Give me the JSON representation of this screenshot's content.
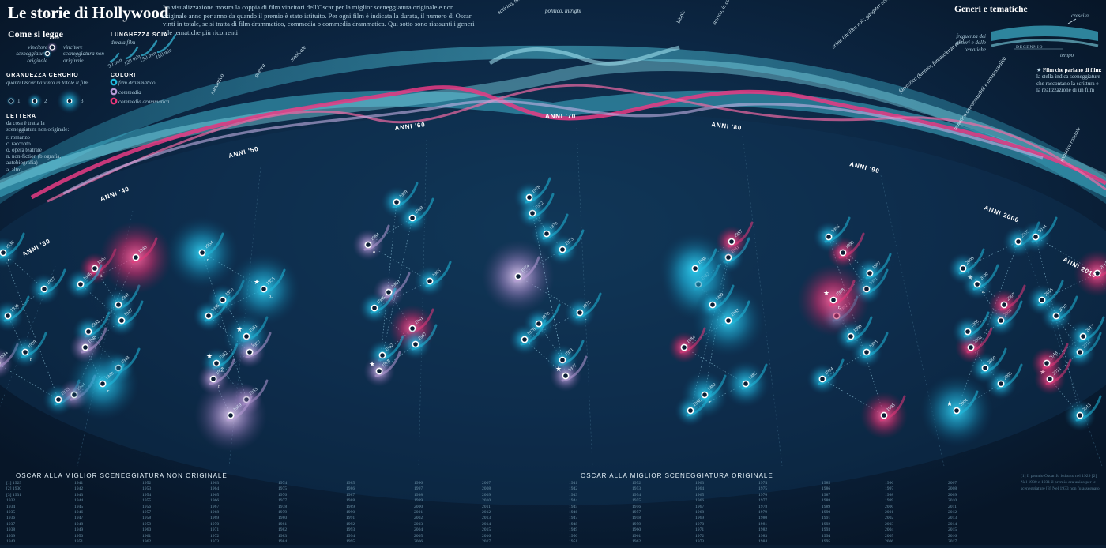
{
  "title": "Le storie di Hollywood",
  "intro": "La visualizzazione mostra la coppia di film vincitori dell'Oscar per la miglior sceneggiatura originale e non originale anno per anno da quando il premio è stato istituito. Per ogni film è indicata la durata, il numero di Oscar vinti in totale, se si tratta di film drammatico, commedia o commedia drammatica. Qui sotto sono riassunti i generi e le tematiche più ricorrenti",
  "legend": {
    "heading": "Come si legge",
    "winners": {
      "original": "vincitore sceneggiatura originale",
      "non_original": "vincitore sceneggiatura non originale"
    },
    "trail": {
      "title": "LUNGHEZZA SCIA",
      "subtitle": "durata film",
      "labels": [
        "90 min",
        "120 min",
        "150 min",
        "180 min"
      ]
    },
    "circle": {
      "title": "GRANDEZZA CERCHIO",
      "subtitle": "quanti Oscar ha vinto in totale il film",
      "labels": [
        "1",
        "2",
        "3"
      ]
    },
    "colors": {
      "title": "COLORI",
      "items": [
        {
          "label": "film drammatico",
          "color": "#1fb9dd"
        },
        {
          "label": "commedia",
          "color": "#b69ad6"
        },
        {
          "label": "commedia drammatica",
          "color": "#e8367a"
        }
      ]
    },
    "letter": {
      "title": "LETTERA",
      "subtitle": "da cosa è tratta la sceneggiatura non originale:",
      "items": [
        "r. romanzo",
        "c. racconto",
        "o. opera teatrale",
        "n. non-fiction (biografia, autobiografia)",
        "a. altro"
      ]
    }
  },
  "genres": {
    "heading": "Generi e tematiche",
    "axis": {
      "band_label": "frequenza dei generi e delle tematiche",
      "decade": "DECENNIO",
      "growth": "crescita",
      "time": "tempo"
    },
    "labels": [
      "romantico",
      "guerra",
      "musicale",
      "satirico, black comedy",
      "politico, intrighi",
      "biopic",
      "storico, in costume",
      "crime (thriller, noir, gangster ecc.)",
      "fantastico (fantasy, fantascienza ecc.)",
      "tematica omosessualità e transessualità",
      "tematica razziale"
    ]
  },
  "star_note": {
    "title": "Film che parlano di film:",
    "text": "la stella indica sceneggiature che raccontano la scrittura e la realizzazione di un film"
  },
  "decades": [
    "ANNI '30",
    "ANNI '40",
    "ANNI '50",
    "ANNI '60",
    "ANNI '70",
    "ANNI '80",
    "ANNI '90",
    "ANNI 2000",
    "ANNI 2010"
  ],
  "films": [
    {
      "yr": "1934",
      "c": "c",
      "o": 1,
      "l": "",
      "s": 0
    },
    {
      "yr": "1935",
      "c": "d",
      "o": 1,
      "l": "",
      "s": 0
    },
    {
      "yr": "1936",
      "c": "d",
      "o": 1,
      "l": "r.",
      "s": 0
    },
    {
      "yr": "1937",
      "c": "d",
      "o": 1,
      "l": "",
      "s": 0
    },
    {
      "yr": "1938",
      "c": "d",
      "o": 1,
      "l": "",
      "s": 0
    },
    {
      "yr": "1939",
      "c": "d",
      "o": 1,
      "l": "r.",
      "s": 0
    },
    {
      "yr": "1940",
      "c": "m",
      "o": 1,
      "l": "o.",
      "s": 0
    },
    {
      "yr": "1941",
      "c": "d",
      "o": 1,
      "l": "",
      "s": 0
    },
    {
      "yr": "1942",
      "c": "d",
      "o": 1,
      "l": "",
      "s": 0
    },
    {
      "yr": "1943",
      "c": "d",
      "o": 1,
      "l": "",
      "s": 0
    },
    {
      "yr": "1944",
      "c": "c",
      "o": 1,
      "l": "",
      "s": 0
    },
    {
      "yr": "1945",
      "c": "m",
      "o": 3,
      "l": "",
      "s": 0
    },
    {
      "yr": "1946",
      "c": "d",
      "o": 1,
      "l": "",
      "s": 0
    },
    {
      "yr": "1947",
      "c": "d",
      "o": 1,
      "l": "",
      "s": 0
    },
    {
      "yr": "1948",
      "c": "c",
      "o": 1,
      "l": "",
      "s": 0
    },
    {
      "yr": "1949",
      "c": "d",
      "o": 3,
      "l": "r.",
      "s": 0
    },
    {
      "yr": "1950",
      "c": "d",
      "o": 1,
      "l": "",
      "s": 0
    },
    {
      "yr": "1951",
      "c": "d",
      "o": 2,
      "l": "r.",
      "s": 1
    },
    {
      "yr": "1952",
      "c": "d",
      "o": 1,
      "l": "c.",
      "s": 1
    },
    {
      "yr": "1953",
      "c": "c",
      "o": 1,
      "l": "",
      "s": 0
    },
    {
      "yr": "1954",
      "c": "d",
      "o": 3,
      "l": "r.",
      "s": 0
    },
    {
      "yr": "1955",
      "c": "d",
      "o": 3,
      "l": "o.",
      "s": 1
    },
    {
      "yr": "1956",
      "c": "d",
      "o": 1,
      "l": "",
      "s": 0
    },
    {
      "yr": "1957",
      "c": "c",
      "o": 1,
      "l": "",
      "s": 0
    },
    {
      "yr": "1958",
      "c": "c",
      "o": 1,
      "l": "r.",
      "s": 0
    },
    {
      "yr": "1959",
      "c": "c",
      "o": 3,
      "l": "",
      "s": 0
    },
    {
      "yr": "1960",
      "c": "c",
      "o": 1,
      "l": "",
      "s": 0
    },
    {
      "yr": "1961",
      "c": "m",
      "o": 2,
      "l": "",
      "s": 0
    },
    {
      "yr": "1962",
      "c": "d",
      "o": 1,
      "l": "",
      "s": 0
    },
    {
      "yr": "1963",
      "c": "d",
      "o": 1,
      "l": "",
      "s": 0
    },
    {
      "yr": "1964",
      "c": "c",
      "o": 1,
      "l": "o.",
      "s": 0
    },
    {
      "yr": "1965",
      "c": "d",
      "o": 1,
      "l": "",
      "s": 0
    },
    {
      "yr": "1966",
      "c": "d",
      "o": 1,
      "l": "",
      "s": 0
    },
    {
      "yr": "1967",
      "c": "d",
      "o": 1,
      "l": "",
      "s": 0
    },
    {
      "yr": "1968",
      "c": "c",
      "o": 1,
      "l": "",
      "s": 1
    },
    {
      "yr": "1969",
      "c": "d",
      "o": 1,
      "l": "",
      "s": 0
    },
    {
      "yr": "1970",
      "c": "d",
      "o": 1,
      "l": "",
      "s": 0
    },
    {
      "yr": "1971",
      "c": "d",
      "o": 1,
      "l": "",
      "s": 0
    },
    {
      "yr": "1972",
      "c": "d",
      "o": 1,
      "l": "",
      "s": 0
    },
    {
      "yr": "1973",
      "c": "d",
      "o": 1,
      "l": "",
      "s": 0
    },
    {
      "yr": "1974",
      "c": "c",
      "o": 3,
      "l": "",
      "s": 0
    },
    {
      "yr": "1975",
      "c": "d",
      "o": 1,
      "l": "r.",
      "s": 0
    },
    {
      "yr": "1976",
      "c": "d",
      "o": 1,
      "l": "",
      "s": 0
    },
    {
      "yr": "1977",
      "c": "c",
      "o": 1,
      "l": "",
      "s": 1
    },
    {
      "yr": "1978",
      "c": "d",
      "o": 1,
      "l": "",
      "s": 0
    },
    {
      "yr": "1979",
      "c": "d",
      "o": 1,
      "l": "",
      "s": 0
    },
    {
      "yr": "1980",
      "c": "d",
      "o": 2,
      "l": "r.",
      "s": 0
    },
    {
      "yr": "1981",
      "c": "d",
      "o": 1,
      "l": "",
      "s": 0
    },
    {
      "yr": "1982",
      "c": "d",
      "o": 3,
      "l": "",
      "s": 0
    },
    {
      "yr": "1983",
      "c": "d",
      "o": 3,
      "l": "",
      "s": 0
    },
    {
      "yr": "1984",
      "c": "m",
      "o": 1,
      "l": "",
      "s": 0
    },
    {
      "yr": "1985",
      "c": "d",
      "o": 2,
      "l": "",
      "s": 0
    },
    {
      "yr": "1986",
      "c": "d",
      "o": 1,
      "l": "",
      "s": 0
    },
    {
      "yr": "1987",
      "c": "m",
      "o": 1,
      "l": "",
      "s": 0
    },
    {
      "yr": "1988",
      "c": "d",
      "o": 3,
      "l": "",
      "s": 0
    },
    {
      "yr": "1989",
      "c": "d",
      "o": 1,
      "l": "",
      "s": 0
    },
    {
      "yr": "1990",
      "c": "m",
      "o": 1,
      "l": "o.",
      "s": 0
    },
    {
      "yr": "1991",
      "c": "d",
      "o": 1,
      "l": "",
      "s": 0
    },
    {
      "yr": "1992",
      "c": "d",
      "o": 1,
      "l": "",
      "s": 0
    },
    {
      "yr": "1993",
      "c": "d",
      "o": 1,
      "l": "",
      "s": 0
    },
    {
      "yr": "1994",
      "c": "d",
      "o": 1,
      "l": "",
      "s": 0
    },
    {
      "yr": "1995",
      "c": "m",
      "o": 2,
      "l": "",
      "s": 0
    },
    {
      "yr": "1996",
      "c": "d",
      "o": 1,
      "l": "",
      "s": 0
    },
    {
      "yr": "1997",
      "c": "d",
      "o": 1,
      "l": "",
      "s": 0
    },
    {
      "yr": "1998",
      "c": "m",
      "o": 3,
      "l": "r.",
      "s": 1
    },
    {
      "yr": "1999",
      "c": "d",
      "o": 1,
      "l": "",
      "s": 0
    },
    {
      "yr": "2000",
      "c": "d",
      "o": 1,
      "l": "a.",
      "s": 1
    },
    {
      "yr": "2001",
      "c": "d",
      "o": 1,
      "l": "",
      "s": 0
    },
    {
      "yr": "2002",
      "c": "m",
      "o": 1,
      "l": "",
      "s": 0
    },
    {
      "yr": "2003",
      "c": "d",
      "o": 1,
      "l": "",
      "s": 0
    },
    {
      "yr": "2004",
      "c": "d",
      "o": 3,
      "l": "",
      "s": 1
    },
    {
      "yr": "2005",
      "c": "d",
      "o": 1,
      "l": "",
      "s": 0
    },
    {
      "yr": "2006",
      "c": "d",
      "o": 1,
      "l": "",
      "s": 0
    },
    {
      "yr": "2007",
      "c": "m",
      "o": 1,
      "l": "",
      "s": 0
    },
    {
      "yr": "2008",
      "c": "d",
      "o": 1,
      "l": "",
      "s": 0
    },
    {
      "yr": "2009",
      "c": "d",
      "o": 1,
      "l": "",
      "s": 0
    },
    {
      "yr": "2010",
      "c": "d",
      "o": 1,
      "l": "",
      "s": 0
    },
    {
      "yr": "2011",
      "c": "d",
      "o": 1,
      "l": "",
      "s": 0
    },
    {
      "yr": "2012",
      "c": "m",
      "o": 1,
      "l": "",
      "s": 1
    },
    {
      "yr": "2013",
      "c": "d",
      "o": 1,
      "l": "",
      "s": 0
    },
    {
      "yr": "2014",
      "c": "d",
      "o": 1,
      "l": "",
      "s": 0
    },
    {
      "yr": "2015",
      "c": "m",
      "o": 2,
      "l": "",
      "s": 0
    },
    {
      "yr": "2016",
      "c": "d",
      "o": 1,
      "l": "",
      "s": 0
    },
    {
      "yr": "2017",
      "c": "d",
      "o": 1,
      "l": "",
      "s": 0
    },
    {
      "yr": "2018",
      "c": "m",
      "o": 1,
      "l": "",
      "s": 0
    }
  ],
  "list_non_original": {
    "heading": "OSCAR ALLA MIGLIOR SCENEGGIATURA NON ORIGINALE",
    "columns": [
      [
        "[1] 1929",
        "[2] 1930",
        "[3] 1931",
        "1932",
        "1934",
        "1935",
        "1936",
        "1937",
        "1938",
        "1939",
        "1940"
      ],
      [
        "1941",
        "1942",
        "1943",
        "1944",
        "1945",
        "1946",
        "1947",
        "1948",
        "1949",
        "1950",
        "1951"
      ],
      [
        "1952",
        "1953",
        "1954",
        "1955",
        "1956",
        "1957",
        "1958",
        "1959",
        "1960",
        "1961",
        "1962"
      ],
      [
        "1963",
        "1964",
        "1965",
        "1966",
        "1967",
        "1968",
        "1969",
        "1970",
        "1971",
        "1972",
        "1973"
      ],
      [
        "1974",
        "1975",
        "1976",
        "1977",
        "1978",
        "1979",
        "1980",
        "1981",
        "1982",
        "1983",
        "1984"
      ],
      [
        "1985",
        "1986",
        "1987",
        "1988",
        "1989",
        "1990",
        "1991",
        "1992",
        "1993",
        "1994",
        "1995"
      ],
      [
        "1996",
        "1997",
        "1998",
        "1999",
        "2000",
        "2001",
        "2002",
        "2003",
        "2004",
        "2005",
        "2006"
      ],
      [
        "2007",
        "2008",
        "2009",
        "2010",
        "2011",
        "2012",
        "2013",
        "2014",
        "2015",
        "2016",
        "2017"
      ]
    ]
  },
  "list_original": {
    "heading": "OSCAR ALLA MIGLIOR SCENEGGIATURA ORIGINALE",
    "columns": [
      [
        "1941",
        "1942",
        "1943",
        "1944",
        "1945",
        "1946",
        "1947",
        "1948",
        "1949",
        "1950",
        "1951"
      ],
      [
        "1952",
        "1953",
        "1954",
        "1955",
        "1956",
        "1957",
        "1958",
        "1959",
        "1960",
        "1961",
        "1962"
      ],
      [
        "1963",
        "1964",
        "1965",
        "1966",
        "1967",
        "1968",
        "1969",
        "1970",
        "1971",
        "1972",
        "1973"
      ],
      [
        "1974",
        "1975",
        "1976",
        "1977",
        "1978",
        "1979",
        "1980",
        "1981",
        "1982",
        "1983",
        "1984"
      ],
      [
        "1985",
        "1986",
        "1987",
        "1988",
        "1989",
        "1990",
        "1991",
        "1992",
        "1993",
        "1994",
        "1995"
      ],
      [
        "1996",
        "1997",
        "1998",
        "1999",
        "2000",
        "2001",
        "2002",
        "2003",
        "2004",
        "2005",
        "2006"
      ],
      [
        "2007",
        "2008",
        "2009",
        "2010",
        "2011",
        "2012",
        "2013",
        "2014",
        "2015",
        "2016",
        "2017"
      ]
    ]
  },
  "footnotes": "[1] Il premio Oscar fu istituito nel 1929 [2] Nel 1930 e 1931 il premio era unico per le sceneggiature [3] Nel 1933 non fu assegnato"
}
